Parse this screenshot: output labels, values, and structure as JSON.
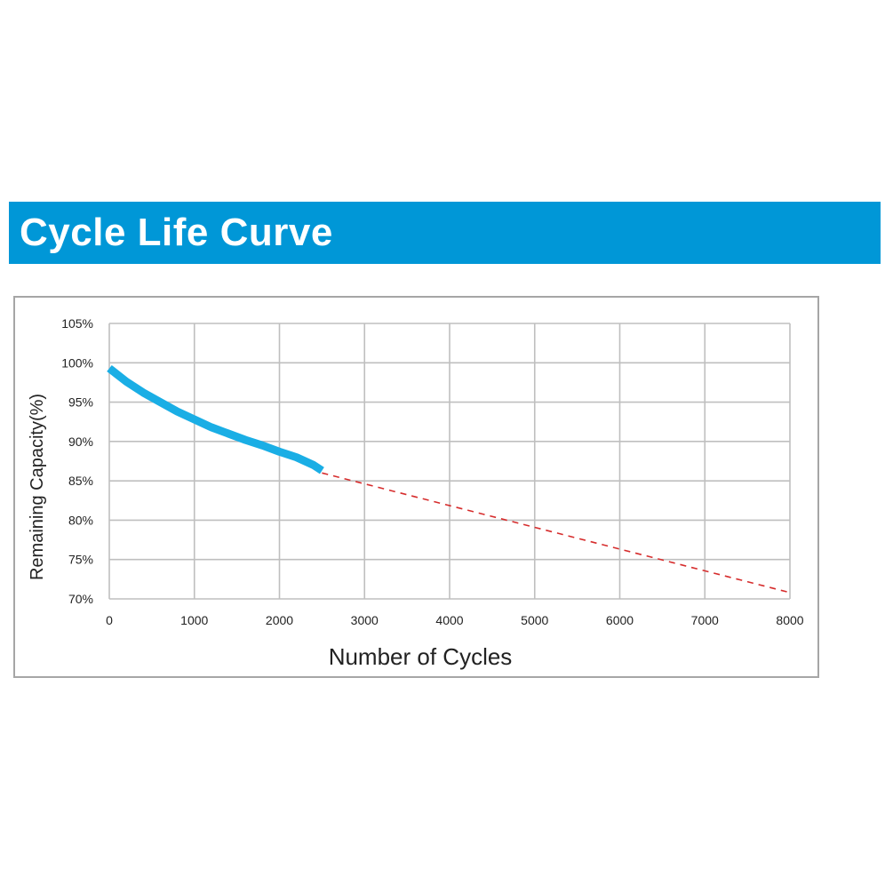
{
  "header": {
    "title": "Cycle Life Curve"
  },
  "colors": {
    "banner": "#0097d7",
    "measured": "#1aaee5",
    "projection": "#d62d2d",
    "grid": "#bfbfbf"
  },
  "chart_data": {
    "type": "line",
    "xlabel": "Number of Cycles",
    "ylabel": "Remaining Capacity(%)",
    "xlim": [
      0,
      8000
    ],
    "ylim": [
      70,
      105
    ],
    "x_ticks": [
      0,
      1000,
      2000,
      3000,
      4000,
      5000,
      6000,
      7000,
      8000
    ],
    "y_ticks": [
      70,
      75,
      80,
      85,
      90,
      95,
      100,
      105
    ],
    "y_tick_labels": [
      "70%",
      "75%",
      "80%",
      "85%",
      "90%",
      "95%",
      "100%",
      "105%"
    ],
    "grid": true,
    "series": [
      {
        "style": "solid",
        "x": [
          0,
          200,
          400,
          600,
          800,
          1000,
          1200,
          1400,
          1600,
          1800,
          2000,
          2200,
          2400,
          2500
        ],
        "y": [
          99.3,
          97.6,
          96.2,
          95.0,
          93.8,
          92.8,
          91.8,
          91.0,
          90.2,
          89.5,
          88.7,
          88.0,
          87.0,
          86.3
        ]
      },
      {
        "style": "dashed",
        "x": [
          2500,
          8000
        ],
        "y": [
          86.0,
          70.8
        ]
      }
    ]
  }
}
